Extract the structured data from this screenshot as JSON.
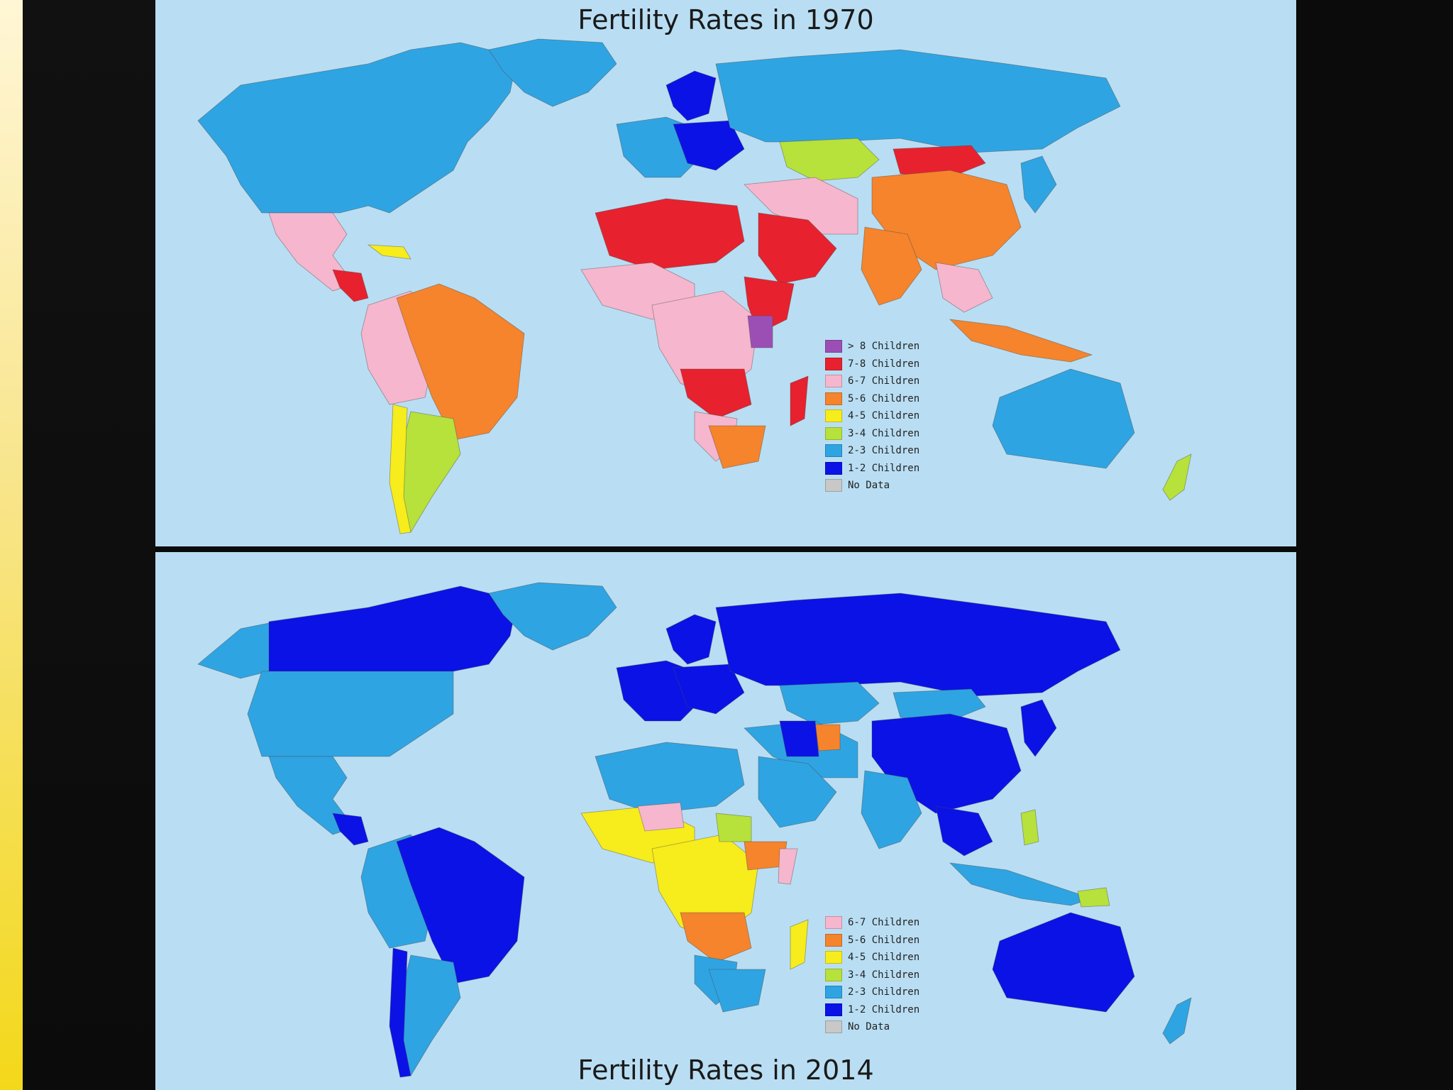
{
  "colors": {
    "gt8": "#9b4fb5",
    "c78": "#e8212e",
    "c67": "#f6b6cd",
    "c56": "#f5842c",
    "c45": "#f7ec1c",
    "c34": "#b7e13b",
    "c23": "#2fa4e2",
    "c12": "#0b12e6",
    "nodata": "#c8c8c8",
    "ocean": "#b9def3"
  },
  "map_1970": {
    "title": "Fertility Rates in 1970",
    "legend": [
      {
        "label": "> 8 Children",
        "color_key": "gt8"
      },
      {
        "label": "7-8 Children",
        "color_key": "c78"
      },
      {
        "label": "6-7 Children",
        "color_key": "c67"
      },
      {
        "label": "5-6 Children",
        "color_key": "c56"
      },
      {
        "label": "4-5 Children",
        "color_key": "c45"
      },
      {
        "label": "3-4 Children",
        "color_key": "c34"
      },
      {
        "label": "2-3 Children",
        "color_key": "c23"
      },
      {
        "label": "1-2 Children",
        "color_key": "c12"
      },
      {
        "label": "No Data",
        "color_key": "nodata"
      }
    ]
  },
  "map_2014": {
    "title": "Fertility Rates in 2014",
    "legend": [
      {
        "label": "6-7 Children",
        "color_key": "c67"
      },
      {
        "label": "5-6 Children",
        "color_key": "c56"
      },
      {
        "label": "4-5 Children",
        "color_key": "c45"
      },
      {
        "label": "3-4 Children",
        "color_key": "c34"
      },
      {
        "label": "2-3 Children",
        "color_key": "c23"
      },
      {
        "label": "1-2 Children",
        "color_key": "c12"
      },
      {
        "label": "No Data",
        "color_key": "nodata"
      }
    ]
  }
}
